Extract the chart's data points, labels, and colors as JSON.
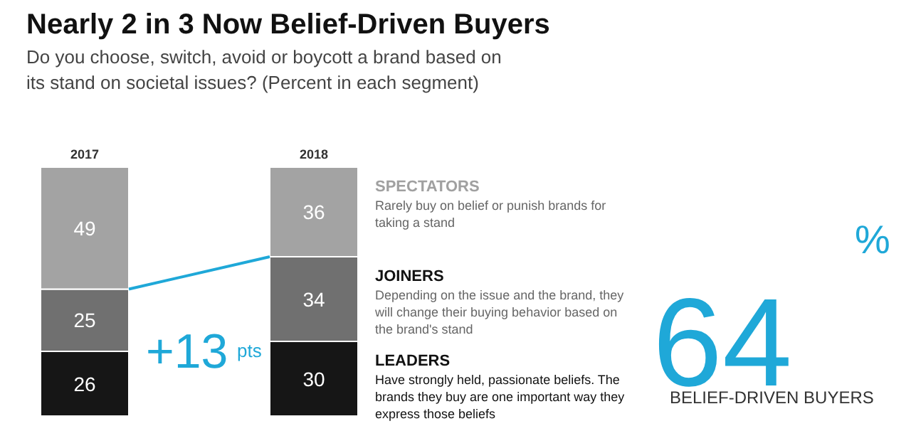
{
  "chart_data": {
    "type": "bar",
    "stacked": true,
    "data_labels": true,
    "title": "Nearly 2 in 3 Now Belief-Driven Buyers",
    "subtitle": "Do you choose, switch, avoid or boycott a brand based on its stand on societal issues? (Percent in each segment)",
    "categories": [
      "2017",
      "2018"
    ],
    "series": [
      {
        "name": "LEADERS",
        "color": "#161616",
        "values": [
          26,
          30
        ]
      },
      {
        "name": "JOINERS",
        "color": "#707070",
        "values": [
          25,
          34
        ]
      },
      {
        "name": "SPECTATORS",
        "color": "#a3a3a3",
        "values": [
          49,
          36
        ]
      }
    ],
    "annotations": [
      "Have strongly held, passionate beliefs. The brands they buy are one important way they express those beliefs",
      "Depending on the issue and the brand, they will change their buying behavior based on the brand's stand",
      "Rarely buy on belief or punish brands for taking a stand",
      "+13 pts",
      "64%",
      "BELIEF-DRIVEN BUYERS"
    ]
  }
}
